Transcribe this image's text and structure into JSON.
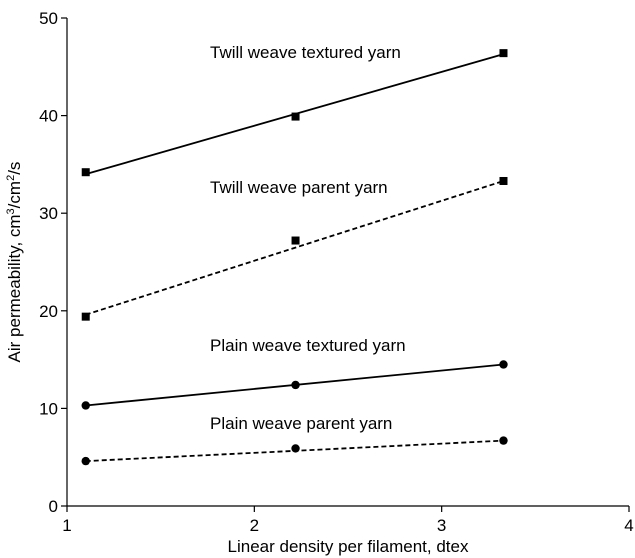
{
  "chart_data": {
    "type": "line",
    "title": "",
    "xlabel": "Linear density per filament, dtex",
    "ylabel_parts": [
      "Air permeability, cm",
      "3",
      "/cm",
      "2",
      "/s"
    ],
    "xlim": [
      1,
      4
    ],
    "ylim": [
      0,
      50
    ],
    "x_ticks": [
      1,
      2,
      3,
      4
    ],
    "y_ticks": [
      0,
      10,
      20,
      30,
      40,
      50
    ],
    "grid": false,
    "legend": "inline labels",
    "series": [
      {
        "name": "Twill weave textured yarn",
        "marker": "square",
        "line_style": "solid",
        "x": [
          1.1,
          2.22,
          3.33
        ],
        "y": [
          34.2,
          39.9,
          46.4
        ],
        "fit": [
          [
            1.1,
            34.0
          ],
          [
            3.33,
            46.3
          ]
        ]
      },
      {
        "name": "Twill weave parent yarn",
        "marker": "square",
        "line_style": "dashed",
        "x": [
          1.1,
          2.22,
          3.33
        ],
        "y": [
          19.4,
          27.2,
          33.3
        ],
        "fit": [
          [
            1.1,
            19.6
          ],
          [
            3.33,
            33.3
          ]
        ]
      },
      {
        "name": "Plain weave textured yarn",
        "marker": "circle",
        "line_style": "solid",
        "x": [
          1.1,
          2.22,
          3.33
        ],
        "y": [
          10.3,
          12.4,
          14.5
        ],
        "fit": [
          [
            1.1,
            10.3
          ],
          [
            3.33,
            14.5
          ]
        ]
      },
      {
        "name": "Plain weave parent yarn",
        "marker": "circle",
        "line_style": "dashed",
        "x": [
          1.1,
          2.22,
          3.33
        ],
        "y": [
          4.6,
          5.9,
          6.7
        ],
        "fit": [
          [
            1.1,
            4.6
          ],
          [
            3.33,
            6.7
          ]
        ]
      }
    ]
  }
}
